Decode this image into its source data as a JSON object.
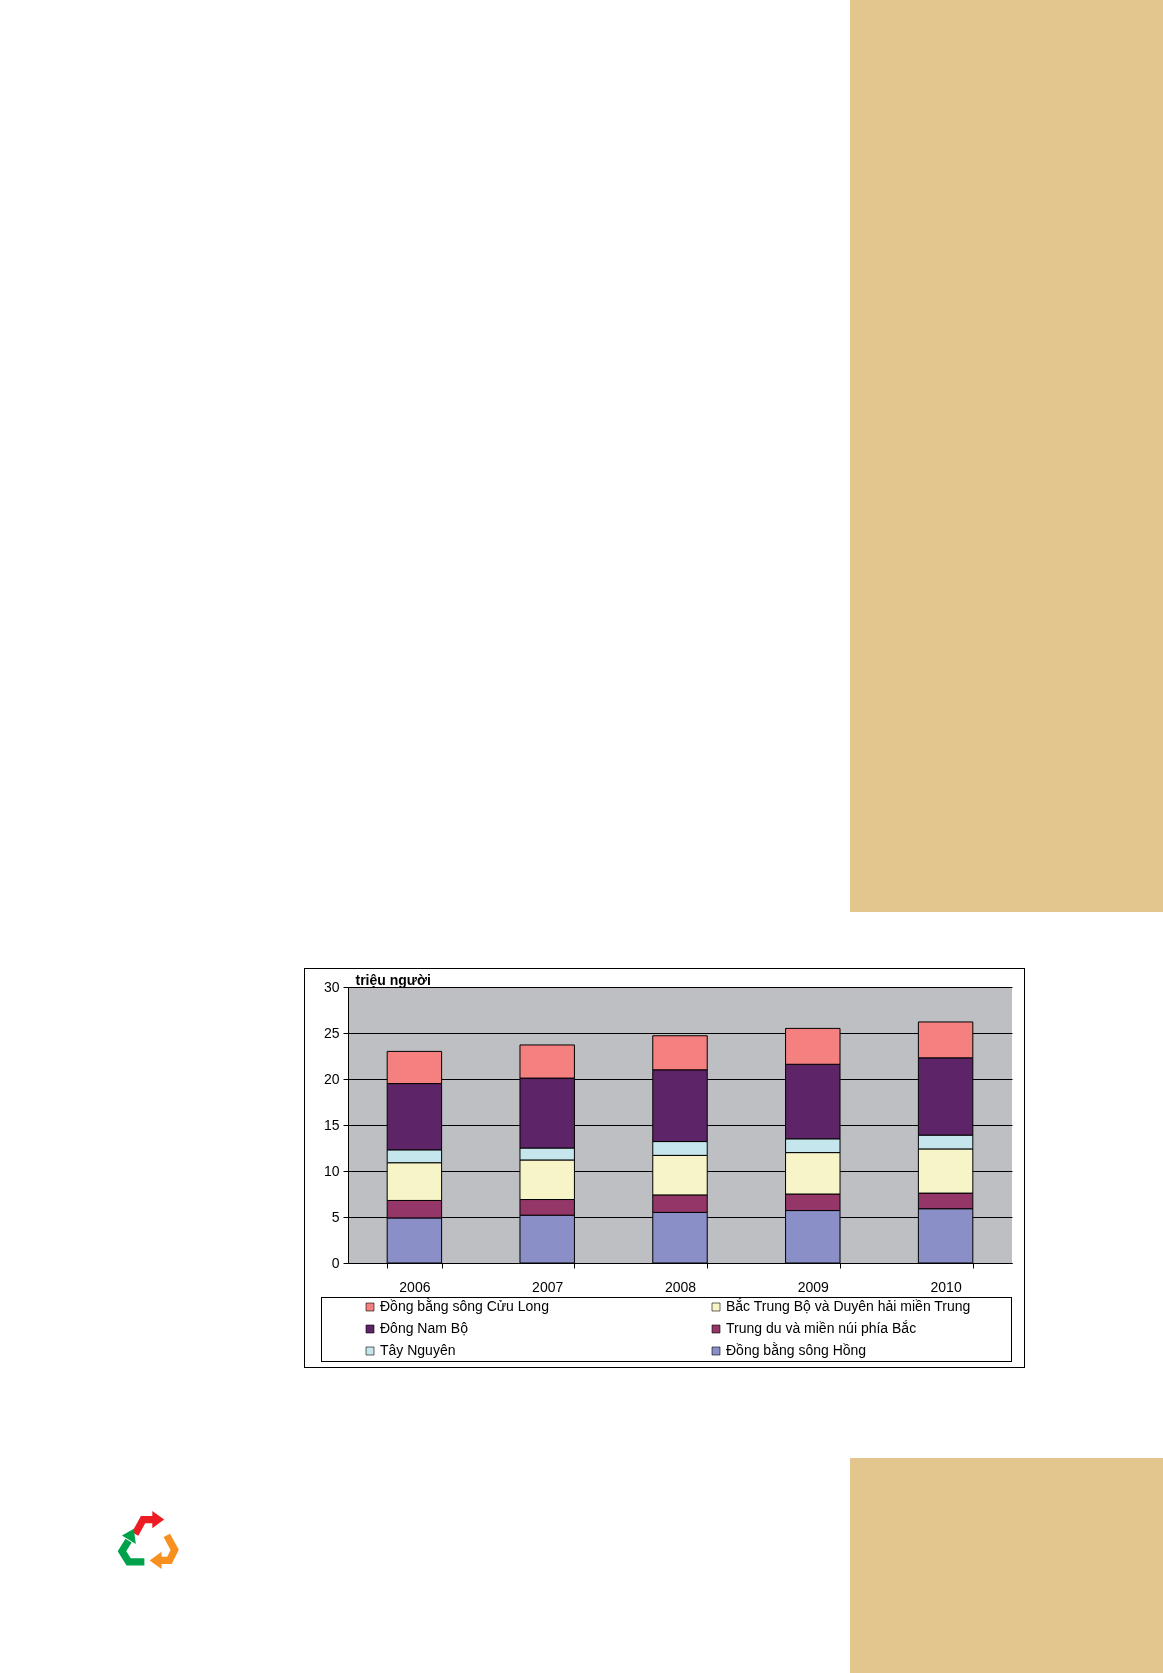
{
  "chart_data": {
    "type": "bar",
    "stacked": true,
    "ylabel": "triệu người",
    "categories": [
      "2006",
      "2007",
      "2008",
      "2009",
      "2010"
    ],
    "series": [
      {
        "name": "Đồng bằng sông Hồng",
        "color": "#8a8fc7",
        "values": [
          4.9,
          5.2,
          5.5,
          5.7,
          5.9
        ]
      },
      {
        "name": "Trung du và miền núi phía Bắc",
        "color": "#943768",
        "values": [
          1.9,
          1.7,
          1.9,
          1.8,
          1.7
        ]
      },
      {
        "name": "Bắc Trung Bộ và Duyên hải miền Trung",
        "color": "#f7f5c8",
        "values": [
          4.1,
          4.3,
          4.3,
          4.5,
          4.8
        ]
      },
      {
        "name": "Tây Nguyên",
        "color": "#c4e6ec",
        "values": [
          1.4,
          1.3,
          1.5,
          1.5,
          1.5
        ]
      },
      {
        "name": "Đông Nam Bộ",
        "color": "#5e2468",
        "values": [
          7.2,
          7.6,
          7.8,
          8.1,
          8.4
        ]
      },
      {
        "name": "Đồng bằng sông Cửu Long",
        "color": "#f48080",
        "values": [
          3.5,
          3.6,
          3.7,
          3.9,
          3.9
        ]
      }
    ],
    "ylim": [
      0,
      30
    ],
    "yticks": [
      0,
      5,
      10,
      15,
      20,
      25,
      30
    ],
    "grid": "y",
    "legend": "bottom"
  }
}
